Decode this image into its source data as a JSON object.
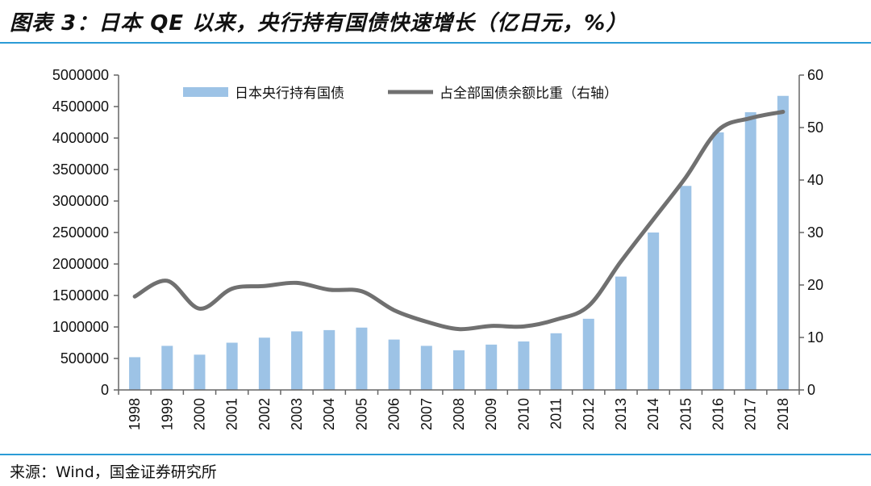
{
  "header": {
    "figure_title": "图表 3：日本 QE 以来，央行持有国债快速增长（亿日元，%）"
  },
  "footer": {
    "source": "来源：Wind，国金证券研究所"
  },
  "colors": {
    "bar": "#9dc3e6",
    "line": "#707070",
    "rule": "#2b9bd6"
  },
  "chart_data": {
    "type": "bar",
    "title": "日本 QE 以来，央行持有国债快速增长（亿日元，%）",
    "categories": [
      "1998",
      "1999",
      "2000",
      "2001",
      "2002",
      "2003",
      "2004",
      "2005",
      "2006",
      "2007",
      "2008",
      "2009",
      "2010",
      "2011",
      "2012",
      "2013",
      "2014",
      "2015",
      "2016",
      "2017",
      "2018"
    ],
    "series": [
      {
        "name": "日本央行持有国债",
        "type": "bar",
        "axis": "left",
        "values": [
          520000,
          700000,
          560000,
          750000,
          830000,
          930000,
          950000,
          990000,
          800000,
          700000,
          630000,
          720000,
          770000,
          900000,
          1130000,
          1800000,
          2500000,
          3240000,
          4090000,
          4410000,
          4670000
        ]
      },
      {
        "name": "占全部国债余额比重（右轴）",
        "type": "line",
        "axis": "right",
        "values": [
          17.8,
          20.8,
          15.5,
          19.3,
          19.8,
          20.4,
          19.1,
          18.8,
          15.2,
          13.0,
          11.6,
          12.2,
          12.1,
          13.4,
          16.0,
          24.5,
          32.5,
          40.5,
          49.5,
          51.8,
          53.0
        ]
      }
    ],
    "y_left": {
      "min": 0,
      "max": 5000000,
      "step": 500000,
      "tick_labels": [
        "0",
        "500000",
        "1000000",
        "1500000",
        "2000000",
        "2500000",
        "3000000",
        "3500000",
        "4000000",
        "4500000",
        "5000000"
      ]
    },
    "y_right": {
      "min": 0,
      "max": 60,
      "step": 10,
      "tick_labels": [
        "0",
        "10",
        "20",
        "30",
        "40",
        "50",
        "60"
      ]
    },
    "xlabel": "",
    "ylabel": "",
    "grid": false,
    "legend_position": "top"
  }
}
